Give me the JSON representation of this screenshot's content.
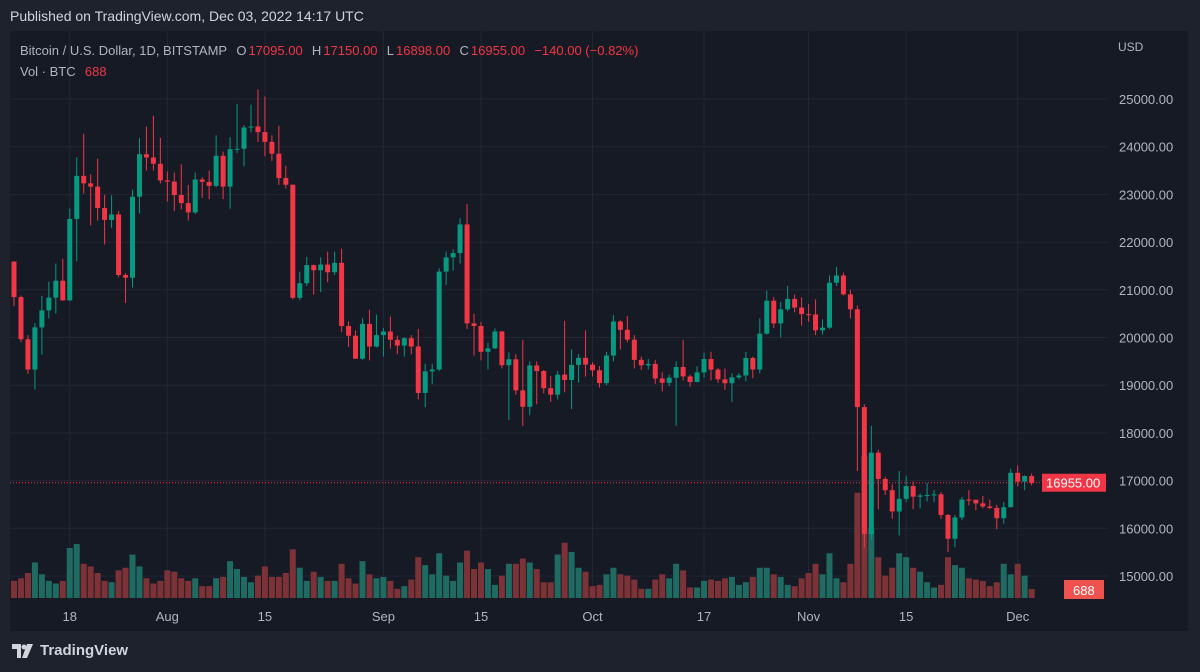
{
  "published": "Published on TradingView.com, Dec 03, 2022 14:17 UTC",
  "legend": {
    "symbol": "Bitcoin / U.S. Dollar, 1D, BITSTAMP",
    "o_label": "O",
    "o": "17095.00",
    "h_label": "H",
    "h": "17150.00",
    "l_label": "L",
    "l": "16898.00",
    "c_label": "C",
    "c": "16955.00",
    "change": "−140.00 (−0.82%)",
    "vol_label": "Vol · BTC",
    "vol": "688"
  },
  "currency": "USD",
  "last_price_label": "16955.00",
  "last_volume_label": "688",
  "footer_brand": "TradingView",
  "colors": {
    "up": "#089981",
    "down": "#f23645",
    "up_vol": "#1f6b62",
    "down_vol": "#7d3237",
    "bg": "#161a25",
    "grid": "#232734"
  },
  "chart_data": {
    "type": "candlestick",
    "title": "Bitcoin / U.S. Dollar, 1D, BITSTAMP",
    "start_date": "2022-07-10",
    "ylabel": "USD",
    "ylim": [
      14500,
      25300
    ],
    "y_ticks": [
      "15000.00",
      "16000.00",
      "17000.00",
      "18000.00",
      "19000.00",
      "20000.00",
      "21000.00",
      "22000.00",
      "23000.00",
      "24000.00",
      "25000.00"
    ],
    "x_ticks": [
      {
        "index": 8,
        "label": "18"
      },
      {
        "index": 22,
        "label": "Aug"
      },
      {
        "index": 36,
        "label": "15"
      },
      {
        "index": 53,
        "label": "Sep"
      },
      {
        "index": 67,
        "label": "15"
      },
      {
        "index": 83,
        "label": "Oct"
      },
      {
        "index": 99,
        "label": "17"
      },
      {
        "index": 114,
        "label": "Nov"
      },
      {
        "index": 128,
        "label": "15"
      },
      {
        "index": 144,
        "label": "Dec"
      }
    ],
    "last_price": 16955,
    "ohlc": [
      [
        21590,
        21600,
        20660,
        20847
      ],
      [
        20847,
        20880,
        19900,
        19963
      ],
      [
        19963,
        20050,
        19240,
        19328
      ],
      [
        19328,
        20300,
        18910,
        20212
      ],
      [
        20212,
        20870,
        19640,
        20569
      ],
      [
        20569,
        21170,
        20400,
        20836
      ],
      [
        20836,
        21550,
        20500,
        21190
      ],
      [
        21190,
        21650,
        20770,
        20779
      ],
      [
        20779,
        22700,
        20760,
        22485
      ],
      [
        22485,
        23780,
        21600,
        23389
      ],
      [
        23389,
        24270,
        23020,
        23231
      ],
      [
        23231,
        23420,
        22350,
        23164
      ],
      [
        23164,
        23750,
        22450,
        22714
      ],
      [
        22714,
        22990,
        21950,
        22465
      ],
      [
        22465,
        22980,
        22300,
        22579
      ],
      [
        22579,
        22650,
        21260,
        21310
      ],
      [
        21310,
        21350,
        20720,
        21254
      ],
      [
        21254,
        23100,
        21050,
        22952
      ],
      [
        22952,
        24180,
        22600,
        23843
      ],
      [
        23843,
        24420,
        23500,
        23774
      ],
      [
        23774,
        24650,
        23500,
        23643
      ],
      [
        23643,
        24190,
        23230,
        23293
      ],
      [
        23293,
        23480,
        22850,
        23268
      ],
      [
        23268,
        23460,
        22650,
        22987
      ],
      [
        22987,
        23630,
        22690,
        22818
      ],
      [
        22818,
        23200,
        22450,
        22622
      ],
      [
        22622,
        23460,
        22590,
        23313
      ],
      [
        23313,
        23360,
        22930,
        23263
      ],
      [
        23263,
        23500,
        22900,
        23179
      ],
      [
        23179,
        24240,
        23150,
        23809
      ],
      [
        23809,
        23900,
        22900,
        23164
      ],
      [
        23164,
        24200,
        22700,
        23948
      ],
      [
        23948,
        24900,
        23870,
        23957
      ],
      [
        23957,
        24450,
        23590,
        24402
      ],
      [
        24402,
        24880,
        24300,
        24424
      ],
      [
        24424,
        25200,
        24100,
        24306
      ],
      [
        24306,
        25050,
        23800,
        24101
      ],
      [
        24101,
        24240,
        23700,
        23854
      ],
      [
        23854,
        24440,
        23200,
        23342
      ],
      [
        23342,
        23600,
        23120,
        23203
      ],
      [
        23203,
        23210,
        20800,
        20831
      ],
      [
        20831,
        21380,
        20780,
        21138
      ],
      [
        21138,
        21690,
        21080,
        21517
      ],
      [
        21517,
        21530,
        20900,
        21410
      ],
      [
        21410,
        21680,
        20950,
        21529
      ],
      [
        21529,
        21800,
        21160,
        21368
      ],
      [
        21368,
        21800,
        21310,
        21565
      ],
      [
        21565,
        21860,
        20120,
        20241
      ],
      [
        20241,
        20340,
        19800,
        20037
      ],
      [
        20037,
        20150,
        19550,
        19555
      ],
      [
        19555,
        20400,
        19530,
        20285
      ],
      [
        20285,
        20580,
        19520,
        19811
      ],
      [
        19811,
        20480,
        19790,
        20050
      ],
      [
        20050,
        20200,
        19600,
        20126
      ],
      [
        20126,
        20440,
        19770,
        19952
      ],
      [
        19952,
        20040,
        19650,
        19832
      ],
      [
        19832,
        20000,
        19600,
        19986
      ],
      [
        19986,
        20050,
        19650,
        19812
      ],
      [
        19812,
        20180,
        18700,
        18837
      ],
      [
        18837,
        19450,
        18540,
        19290
      ],
      [
        19290,
        19450,
        19020,
        19329
      ],
      [
        19329,
        21450,
        19300,
        21381
      ],
      [
        21381,
        21800,
        21100,
        21680
      ],
      [
        21680,
        21850,
        21400,
        21769
      ],
      [
        21769,
        22500,
        21550,
        22370
      ],
      [
        22370,
        22800,
        20180,
        20296
      ],
      [
        20296,
        20500,
        19620,
        20241
      ],
      [
        20241,
        20330,
        19520,
        19701
      ],
      [
        19701,
        19890,
        19330,
        19772
      ],
      [
        19772,
        20190,
        19760,
        20127
      ],
      [
        20127,
        20130,
        19350,
        19419
      ],
      [
        19419,
        19690,
        18270,
        19544
      ],
      [
        19544,
        19650,
        18800,
        18891
      ],
      [
        18891,
        19950,
        18150,
        18547
      ],
      [
        18547,
        19500,
        18370,
        19413
      ],
      [
        19413,
        19500,
        18600,
        19297
      ],
      [
        19297,
        19320,
        18830,
        18937
      ],
      [
        18937,
        19190,
        18650,
        18802
      ],
      [
        18802,
        19300,
        18700,
        19222
      ],
      [
        19222,
        20350,
        18850,
        19110
      ],
      [
        19110,
        19750,
        18500,
        19426
      ],
      [
        19426,
        19650,
        19050,
        19573
      ],
      [
        19573,
        20150,
        19180,
        19431
      ],
      [
        19431,
        19480,
        19180,
        19312
      ],
      [
        19312,
        19400,
        18950,
        19044
      ],
      [
        19044,
        19700,
        19000,
        19623
      ],
      [
        19623,
        20470,
        19500,
        20336
      ],
      [
        20336,
        20360,
        19750,
        20161
      ],
      [
        20161,
        20450,
        19900,
        19955
      ],
      [
        19955,
        20050,
        19350,
        19531
      ],
      [
        19531,
        19600,
        19320,
        19417
      ],
      [
        19417,
        19550,
        19330,
        19446
      ],
      [
        19446,
        19530,
        19030,
        19141
      ],
      [
        19141,
        19270,
        18870,
        19051
      ],
      [
        19051,
        19220,
        18980,
        19157
      ],
      [
        19157,
        19500,
        18150,
        19382
      ],
      [
        19382,
        19950,
        19100,
        19185
      ],
      [
        19185,
        19220,
        18970,
        19067
      ],
      [
        19067,
        19400,
        19060,
        19268
      ],
      [
        19268,
        19680,
        19160,
        19549
      ],
      [
        19549,
        19700,
        19100,
        19327
      ],
      [
        19327,
        19360,
        19050,
        19123
      ],
      [
        19123,
        19350,
        18900,
        19041
      ],
      [
        19041,
        19250,
        18650,
        19164
      ],
      [
        19164,
        19250,
        19120,
        19204
      ],
      [
        19204,
        19700,
        19080,
        19570
      ],
      [
        19570,
        19600,
        19150,
        19330
      ],
      [
        19330,
        20400,
        19250,
        20080
      ],
      [
        20080,
        20980,
        20060,
        20771
      ],
      [
        20771,
        20850,
        20200,
        20295
      ],
      [
        20295,
        20750,
        20000,
        20591
      ],
      [
        20591,
        21080,
        20550,
        20809
      ],
      [
        20809,
        20900,
        20530,
        20627
      ],
      [
        20627,
        20840,
        20250,
        20490
      ],
      [
        20490,
        20700,
        20330,
        20483
      ],
      [
        20483,
        20800,
        20050,
        20151
      ],
      [
        20151,
        20380,
        20060,
        20207
      ],
      [
        20207,
        21300,
        20180,
        21148
      ],
      [
        21148,
        21480,
        21080,
        21300
      ],
      [
        21300,
        21360,
        20880,
        20905
      ],
      [
        20905,
        21000,
        20400,
        20591
      ],
      [
        20591,
        20670,
        17200,
        18541
      ],
      [
        18541,
        18600,
        15600,
        15880
      ],
      [
        15880,
        18150,
        15750,
        17586
      ],
      [
        17586,
        17650,
        16400,
        17034
      ],
      [
        17034,
        17080,
        16700,
        16799
      ],
      [
        16799,
        16920,
        16200,
        16353
      ],
      [
        16353,
        17200,
        15850,
        16618
      ],
      [
        16618,
        17100,
        16550,
        16884
      ],
      [
        16884,
        16980,
        16400,
        16663
      ],
      [
        16663,
        16730,
        16420,
        16687
      ],
      [
        16687,
        16950,
        16560,
        16697
      ],
      [
        16697,
        16800,
        16550,
        16712
      ],
      [
        16712,
        16760,
        16200,
        16280
      ],
      [
        16280,
        16300,
        15500,
        15781
      ],
      [
        15781,
        16280,
        15600,
        16227
      ],
      [
        16227,
        16660,
        16170,
        16603
      ],
      [
        16603,
        16800,
        16480,
        16599
      ],
      [
        16599,
        16600,
        16380,
        16522
      ],
      [
        16522,
        16680,
        16420,
        16458
      ],
      [
        16458,
        16600,
        16400,
        16428
      ],
      [
        16428,
        16490,
        15980,
        16213
      ],
      [
        16213,
        16550,
        16100,
        16442
      ],
      [
        16442,
        17250,
        16440,
        17163
      ],
      [
        17163,
        17320,
        16880,
        16978
      ],
      [
        16978,
        17110,
        16800,
        17095
      ],
      [
        17095,
        17150,
        16898,
        16955
      ]
    ],
    "volume": [
      1300,
      1500,
      1900,
      2700,
      1800,
      1300,
      1100,
      1300,
      3800,
      4100,
      2600,
      2400,
      1900,
      1300,
      1200,
      2100,
      2300,
      3300,
      2400,
      1500,
      1100,
      1300,
      2100,
      2000,
      1500,
      1300,
      1500,
      900,
      900,
      1500,
      1600,
      2800,
      2200,
      1600,
      1200,
      1700,
      2400,
      1600,
      1600,
      1900,
      3700,
      2300,
      1300,
      2000,
      1600,
      1300,
      1300,
      2600,
      1500,
      1100,
      2800,
      1800,
      1500,
      1600,
      1300,
      700,
      900,
      1400,
      3100,
      2500,
      1800,
      3400,
      1700,
      1300,
      2700,
      3600,
      2200,
      2700,
      2200,
      1000,
      1700,
      2600,
      2600,
      3000,
      2700,
      2200,
      1200,
      1200,
      3300,
      4200,
      3500,
      2300,
      2000,
      900,
      1000,
      1800,
      2300,
      1800,
      1700,
      1400,
      700,
      700,
      1400,
      1800,
      1500,
      2600,
      2100,
      800,
      800,
      1300,
      1400,
      1300,
      1500,
      1600,
      1000,
      1200,
      1600,
      2300,
      2300,
      1800,
      1600,
      1000,
      900,
      1500,
      1900,
      2600,
      1800,
      3400,
      1500,
      1200,
      2600,
      8000,
      10800,
      5300,
      3100,
      1700,
      2300,
      3400,
      3100,
      2300,
      2000,
      1200,
      800,
      1000,
      3100,
      2500,
      2300,
      1500,
      1400,
      1300,
      900,
      1200,
      2600,
      1800,
      2600,
      1700,
      688
    ]
  }
}
